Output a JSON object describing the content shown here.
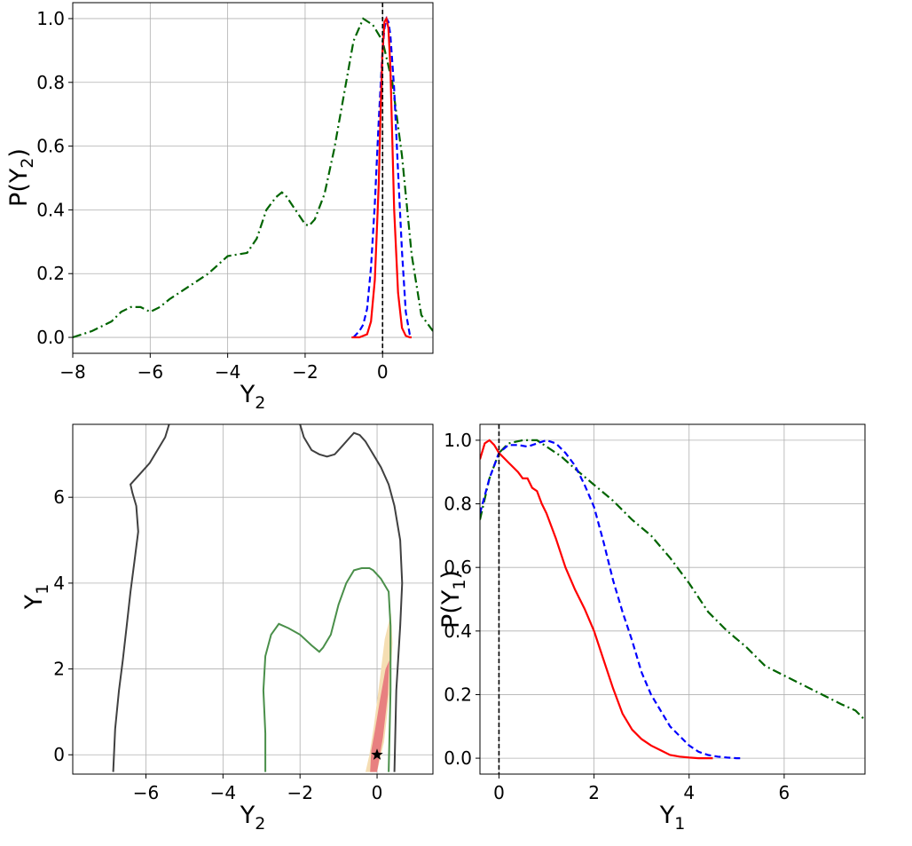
{
  "chart_data": [
    {
      "id": "top",
      "type": "line",
      "xlabel": "Y",
      "xlabel_sub": "2",
      "ylabel": "P(Y",
      "ylabel_sub": "2",
      "ylabel_close": ")",
      "xlim": [
        -8,
        1.3
      ],
      "ylim": [
        -0.05,
        1.05
      ],
      "xticks": [
        -8,
        -6,
        -4,
        -2,
        0
      ],
      "xtick_labels": [
        "−8",
        "−6",
        "−4",
        "−2",
        "0"
      ],
      "yticks": [
        0.0,
        0.2,
        0.4,
        0.6,
        0.8,
        1.0
      ],
      "ytick_labels": [
        "0.0",
        "0.2",
        "0.4",
        "0.6",
        "0.8",
        "1.0"
      ],
      "grid": true,
      "vline_x": 0,
      "series": [
        {
          "color": "#006400",
          "dash": "dashdot",
          "x": [
            -8,
            -7.5,
            -7,
            -6.75,
            -6.5,
            -6.25,
            -6,
            -5.75,
            -5.5,
            -5,
            -4.5,
            -4,
            -3.75,
            -3.5,
            -3.25,
            -3,
            -2.75,
            -2.6,
            -2.5,
            -2.25,
            -2,
            -1.9,
            -1.75,
            -1.5,
            -1.25,
            -1,
            -0.75,
            -0.5,
            -0.25,
            0,
            0.25,
            0.5,
            0.75,
            1,
            1.3
          ],
          "y": [
            0.0,
            0.02,
            0.05,
            0.08,
            0.095,
            0.095,
            0.08,
            0.095,
            0.12,
            0.16,
            0.2,
            0.255,
            0.26,
            0.265,
            0.31,
            0.4,
            0.44,
            0.455,
            0.445,
            0.4,
            0.355,
            0.35,
            0.37,
            0.45,
            0.59,
            0.76,
            0.93,
            1.0,
            0.98,
            0.93,
            0.8,
            0.57,
            0.26,
            0.07,
            0.02
          ]
        },
        {
          "color": "#0000ff",
          "dash": "dashed",
          "x": [
            -0.75,
            -0.6,
            -0.5,
            -0.4,
            -0.3,
            -0.2,
            -0.1,
            0,
            0.05,
            0.1,
            0.15,
            0.2,
            0.3,
            0.4,
            0.5,
            0.6,
            0.7,
            0.75
          ],
          "y": [
            0.0,
            0.02,
            0.04,
            0.09,
            0.22,
            0.42,
            0.68,
            0.9,
            0.97,
            1.0,
            0.99,
            0.95,
            0.78,
            0.52,
            0.27,
            0.08,
            0.01,
            0.0
          ]
        },
        {
          "color": "#ff0000",
          "dash": "solid",
          "x": [
            -0.8,
            -0.6,
            -0.4,
            -0.3,
            -0.2,
            -0.1,
            -0.05,
            0,
            0.05,
            0.1,
            0.15,
            0.2,
            0.25,
            0.3,
            0.4,
            0.5,
            0.6,
            0.7,
            0.75
          ],
          "y": [
            0.0,
            0.0,
            0.01,
            0.05,
            0.18,
            0.48,
            0.72,
            0.9,
            0.99,
            1.0,
            0.97,
            0.85,
            0.62,
            0.4,
            0.14,
            0.03,
            0.005,
            0.0,
            0.0
          ]
        }
      ]
    },
    {
      "id": "contour",
      "type": "contour",
      "xlabel": "Y",
      "xlabel_sub": "2",
      "ylabel": "Y",
      "ylabel_sub": "1",
      "xlim": [
        -7.9,
        1.45
      ],
      "ylim": [
        -0.45,
        7.7
      ],
      "xticks": [
        -6,
        -4,
        -2,
        0
      ],
      "xtick_labels": [
        "−6",
        "−4",
        "−2",
        "0"
      ],
      "yticks": [
        0,
        2,
        4,
        6
      ],
      "ytick_labels": [
        "0",
        "2",
        "4",
        "6"
      ],
      "grid": true,
      "marker": {
        "x": 0,
        "y": 0,
        "symbol": "star"
      },
      "regions": [
        {
          "color": "#f5deb3",
          "x": [
            -0.3,
            -0.15,
            0.0,
            0.18,
            0.32,
            0.4,
            0.36,
            0.2,
            0.05,
            -0.08,
            -0.2
          ],
          "y": [
            -0.4,
            -0.4,
            -0.4,
            0.3,
            1.4,
            2.6,
            3.3,
            2.7,
            1.6,
            0.7,
            0.0
          ]
        },
        {
          "color": "#e88080",
          "x": [
            -0.18,
            0.0,
            0.15,
            0.28,
            0.32,
            0.22,
            0.08,
            -0.05,
            -0.15
          ],
          "y": [
            -0.4,
            -0.4,
            0.4,
            1.4,
            2.2,
            2.0,
            1.3,
            0.6,
            0.1
          ]
        }
      ],
      "contours": [
        {
          "color": "#404040",
          "x": [
            -6.85,
            -6.8,
            -6.7,
            -6.6,
            -6.5,
            -6.4,
            -6.3,
            -6.2,
            -6.25,
            -6.35,
            -6.4,
            -6.1,
            -5.9,
            -5.7,
            -5.5,
            -5.4
          ],
          "y": [
            -0.4,
            0.6,
            1.5,
            2.2,
            3.0,
            3.8,
            4.5,
            5.2,
            5.8,
            6.1,
            6.3,
            6.6,
            6.8,
            7.1,
            7.4,
            7.7
          ]
        },
        {
          "color": "#404040",
          "x": [
            -2.0,
            -1.9,
            -1.7,
            -1.5,
            -1.3,
            -1.1,
            -0.9,
            -0.7,
            -0.6,
            -0.45,
            -0.3,
            -0.1,
            0.1,
            0.3,
            0.45,
            0.6,
            0.65,
            0.6,
            0.5,
            0.45
          ],
          "y": [
            7.7,
            7.4,
            7.1,
            7.0,
            6.95,
            7.0,
            7.2,
            7.4,
            7.5,
            7.45,
            7.3,
            7.0,
            6.7,
            6.3,
            5.8,
            5.0,
            4.0,
            3.0,
            1.5,
            -0.4
          ]
        },
        {
          "color": "#4a8f4a",
          "x": [
            -2.9,
            -2.9,
            -2.95,
            -2.9,
            -2.75,
            -2.55,
            -2.3,
            -2.0,
            -1.7,
            -1.5,
            -1.4,
            -1.2,
            -1.0,
            -0.8,
            -0.6,
            -0.4,
            -0.2,
            -0.1,
            0.1,
            0.3,
            0.35,
            0.35,
            0.3
          ],
          "y": [
            -0.4,
            0.5,
            1.5,
            2.3,
            2.8,
            3.05,
            2.95,
            2.8,
            2.55,
            2.4,
            2.5,
            2.8,
            3.5,
            4.0,
            4.3,
            4.35,
            4.35,
            4.3,
            4.1,
            3.8,
            3.0,
            1.5,
            -0.4
          ]
        }
      ]
    },
    {
      "id": "right",
      "type": "line",
      "xlabel": "Y",
      "xlabel_sub": "1",
      "ylabel": "P(Y",
      "ylabel_sub": "1",
      "ylabel_close": ")",
      "xlim": [
        -0.4,
        7.7
      ],
      "ylim": [
        -0.05,
        1.05
      ],
      "xticks": [
        0,
        2,
        4,
        6
      ],
      "xtick_labels": [
        "0",
        "2",
        "4",
        "6"
      ],
      "yticks": [
        0.0,
        0.2,
        0.4,
        0.6,
        0.8,
        1.0
      ],
      "ytick_labels": [
        "0.0",
        "0.2",
        "0.4",
        "0.6",
        "0.8",
        "1.0"
      ],
      "grid": true,
      "vline_x": 0,
      "series": [
        {
          "color": "#006400",
          "dash": "dashdot",
          "x": [
            -0.4,
            -0.2,
            0,
            0.2,
            0.5,
            0.8,
            1.0,
            1.3,
            1.6,
            2.0,
            2.4,
            2.8,
            3.2,
            3.6,
            4.0,
            4.4,
            4.8,
            5.2,
            5.6,
            6.0,
            6.4,
            6.8,
            7.2,
            7.5,
            7.7
          ],
          "y": [
            0.75,
            0.88,
            0.96,
            0.99,
            1.0,
            1.0,
            0.98,
            0.95,
            0.91,
            0.86,
            0.81,
            0.75,
            0.7,
            0.63,
            0.55,
            0.46,
            0.4,
            0.35,
            0.29,
            0.26,
            0.23,
            0.2,
            0.17,
            0.15,
            0.12
          ]
        },
        {
          "color": "#0000ff",
          "dash": "dashed",
          "x": [
            -0.4,
            -0.2,
            0,
            0.2,
            0.4,
            0.6,
            0.8,
            1.0,
            1.2,
            1.4,
            1.6,
            1.8,
            2.0,
            2.2,
            2.4,
            2.6,
            2.8,
            3.0,
            3.2,
            3.4,
            3.6,
            3.8,
            4.0,
            4.2,
            4.4,
            4.6,
            4.8,
            5.0,
            5.1
          ],
          "y": [
            0.77,
            0.88,
            0.96,
            0.985,
            0.985,
            0.98,
            0.99,
            1.0,
            0.99,
            0.96,
            0.92,
            0.86,
            0.79,
            0.68,
            0.56,
            0.46,
            0.37,
            0.27,
            0.2,
            0.15,
            0.1,
            0.07,
            0.04,
            0.02,
            0.01,
            0.005,
            0.002,
            0.0,
            0.0
          ]
        },
        {
          "color": "#ff0000",
          "dash": "solid",
          "x": [
            -0.4,
            -0.3,
            -0.2,
            -0.1,
            0,
            0.2,
            0.4,
            0.5,
            0.6,
            0.7,
            0.8,
            0.9,
            1.0,
            1.2,
            1.4,
            1.6,
            1.8,
            2.0,
            2.2,
            2.4,
            2.6,
            2.8,
            3.0,
            3.2,
            3.4,
            3.6,
            3.8,
            4.0,
            4.2,
            4.5
          ],
          "y": [
            0.94,
            0.99,
            1.0,
            0.985,
            0.96,
            0.93,
            0.9,
            0.88,
            0.88,
            0.85,
            0.84,
            0.8,
            0.77,
            0.69,
            0.6,
            0.53,
            0.47,
            0.4,
            0.31,
            0.22,
            0.14,
            0.09,
            0.06,
            0.04,
            0.025,
            0.01,
            0.005,
            0.002,
            0.0,
            0.0
          ]
        }
      ]
    }
  ]
}
